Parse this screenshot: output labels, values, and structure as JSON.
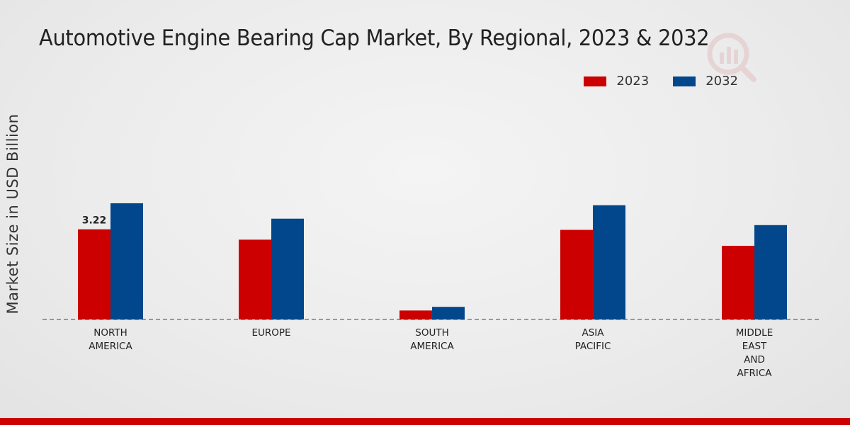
{
  "chart_data": {
    "type": "bar",
    "title": "Automotive Engine Bearing Cap Market, By Regional, 2023 & 2032",
    "ylabel": "Market Size in USD Billion",
    "xlabel": "",
    "categories": [
      [
        "NORTH",
        "AMERICA"
      ],
      [
        "EUROPE"
      ],
      [
        "SOUTH",
        "AMERICA"
      ],
      [
        "ASIA",
        "PACIFIC"
      ],
      [
        "MIDDLE",
        "EAST",
        "AND",
        "AFRICA"
      ]
    ],
    "series": [
      {
        "name": "2023",
        "color": "#cc0000",
        "values": [
          3.22,
          2.85,
          0.32,
          3.2,
          2.63
        ]
      },
      {
        "name": "2032",
        "color": "#02478c",
        "values": [
          4.15,
          3.6,
          0.45,
          4.08,
          3.37
        ]
      }
    ],
    "data_labels": [
      {
        "series": 0,
        "index": 0,
        "text": "3.22"
      }
    ],
    "ylim": [
      0,
      10.5
    ],
    "legend_position": "top-right",
    "grid": false
  }
}
